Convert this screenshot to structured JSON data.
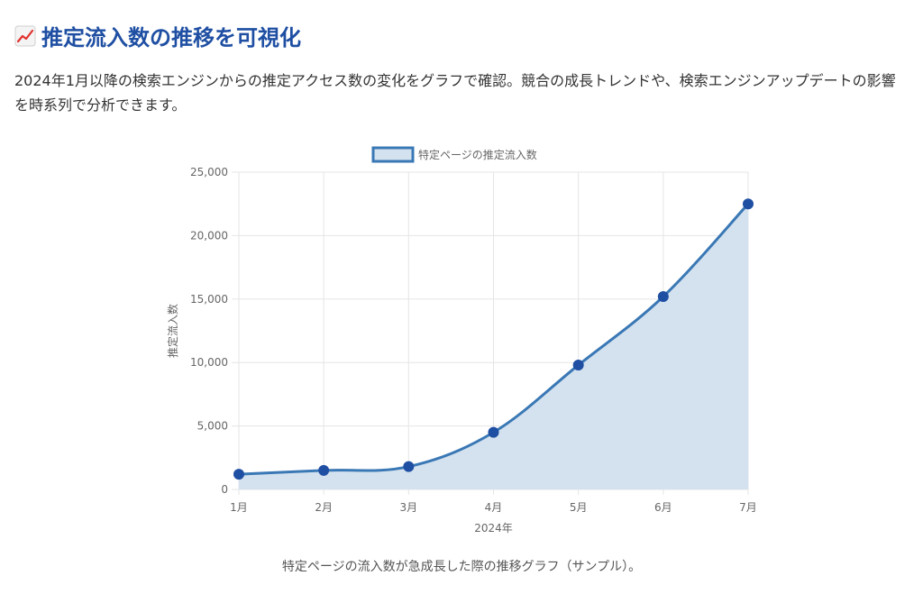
{
  "header": {
    "title": "推定流入数の推移を可視化",
    "icon": "chart-increasing-icon"
  },
  "description": "2024年1月以降の検索エンジンからの推定アクセス数の変化をグラフで確認。競合の成長トレンドや、検索エンジンアップデートの影響を時系列で分析できます。",
  "caption": "特定ページの流入数が急成長した際の推移グラフ（サンプル）。",
  "chart_data": {
    "type": "area",
    "categories": [
      "1月",
      "2月",
      "3月",
      "4月",
      "5月",
      "6月",
      "7月"
    ],
    "series": [
      {
        "name": "特定ページの推定流入数",
        "values": [
          1200,
          1500,
          1800,
          4500,
          9800,
          15200,
          22500
        ]
      }
    ],
    "xlabel": "2024年",
    "ylabel": "推定流入数",
    "ylim": [
      0,
      25000
    ],
    "yticks": [
      0,
      5000,
      10000,
      15000,
      20000,
      25000
    ],
    "ytick_labels": [
      "0",
      "5,000",
      "10,000",
      "15,000",
      "20,000",
      "25,000"
    ],
    "grid": true,
    "legend_position": "top",
    "colors": {
      "line": "#3a78b5",
      "fill": "#d4e2ef",
      "point": "#1f4fa3",
      "grid": "#e5e5e5"
    }
  }
}
